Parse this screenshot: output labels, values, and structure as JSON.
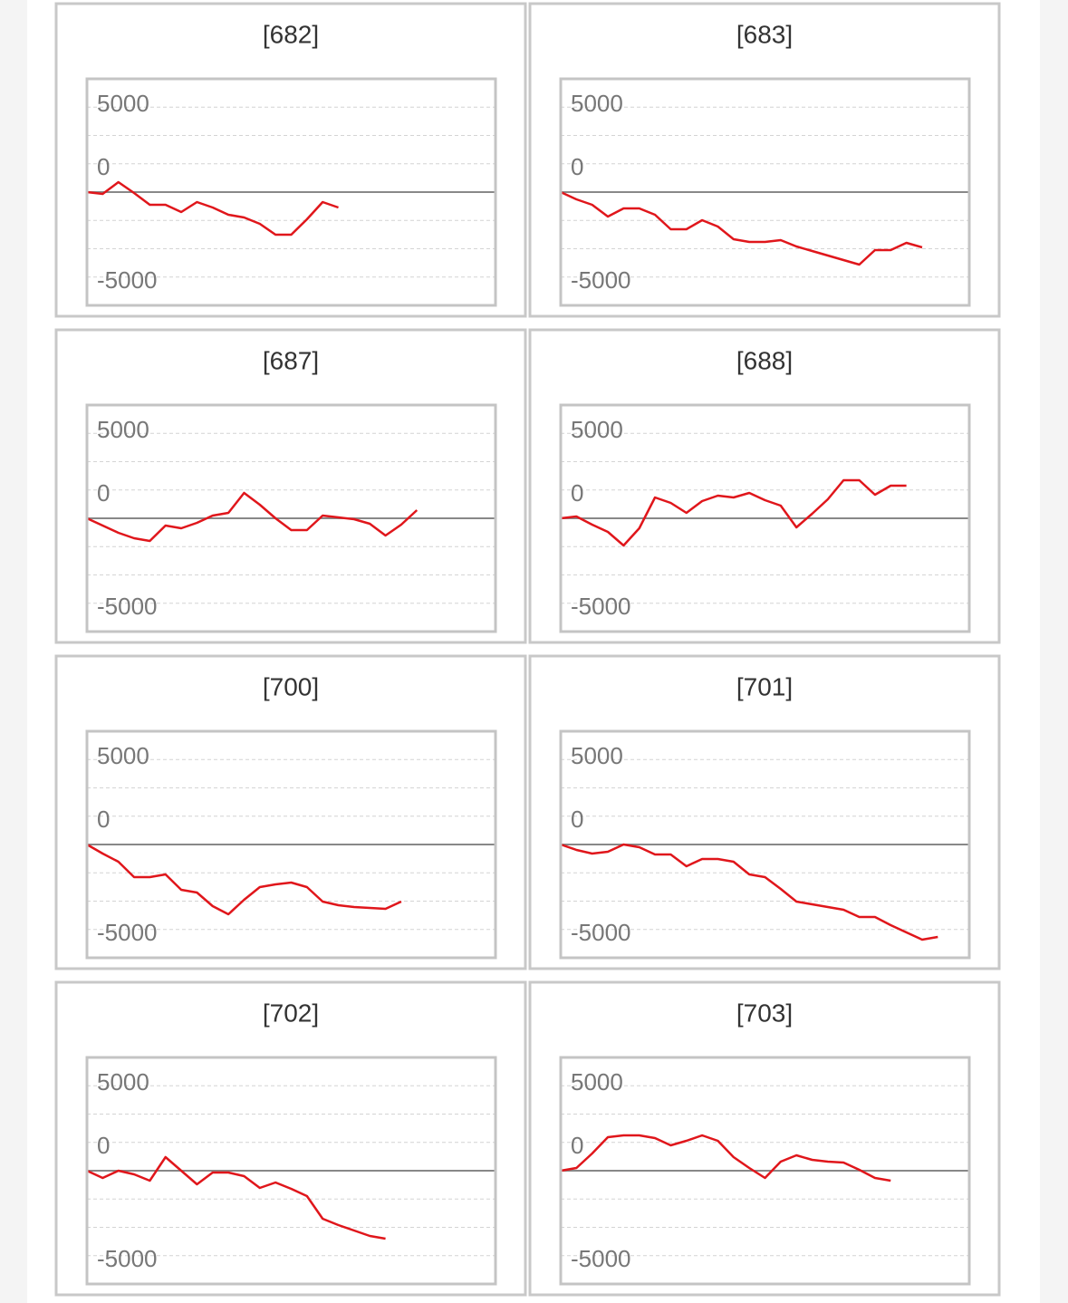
{
  "chart_data": [
    {
      "type": "line",
      "title": "[682]",
      "color": "#e0161b",
      "xlim": [
        0,
        26
      ],
      "ylim": [
        -5000,
        5000
      ],
      "yticks": [
        -5000,
        0,
        5000
      ],
      "minor_yticks": [
        -3750,
        -2500,
        -1250,
        1250,
        2500,
        3750
      ],
      "values": [
        0,
        -80,
        440,
        -40,
        -560,
        -560,
        -880,
        -440,
        -680,
        -1000,
        -1120,
        -1400,
        -1880,
        -1880,
        -1200,
        -440,
        -680
      ]
    },
    {
      "type": "line",
      "title": "[683]",
      "color": "#e0161b",
      "xlim": [
        0,
        26
      ],
      "ylim": [
        -5000,
        5000
      ],
      "yticks": [
        -5000,
        0,
        5000
      ],
      "minor_yticks": [
        -3750,
        -2500,
        -1250,
        1250,
        2500,
        3750
      ],
      "values": [
        0,
        -320,
        -560,
        -1080,
        -720,
        -720,
        -1000,
        -1640,
        -1640,
        -1240,
        -1520,
        -2080,
        -2200,
        -2200,
        -2120,
        -2400,
        -2600,
        -2800,
        -3000,
        -3200,
        -2560,
        -2560,
        -2240,
        -2440
      ]
    },
    {
      "type": "line",
      "title": "[687]",
      "color": "#e0161b",
      "xlim": [
        0,
        26
      ],
      "ylim": [
        -5000,
        5000
      ],
      "yticks": [
        -5000,
        0,
        5000
      ],
      "minor_yticks": [
        -3750,
        -2500,
        -1250,
        1250,
        2500,
        3750
      ],
      "values": [
        0,
        -320,
        -640,
        -880,
        -1000,
        -320,
        -440,
        -200,
        120,
        240,
        1120,
        600,
        0,
        -520,
        -520,
        120,
        40,
        -40,
        -240,
        -760,
        -280,
        360
      ]
    },
    {
      "type": "line",
      "title": "[688]",
      "color": "#e0161b",
      "xlim": [
        0,
        26
      ],
      "ylim": [
        -5000,
        5000
      ],
      "yticks": [
        -5000,
        0,
        5000
      ],
      "minor_yticks": [
        -3750,
        -2500,
        -1250,
        1250,
        2500,
        3750
      ],
      "values": [
        0,
        80,
        -280,
        -600,
        -1200,
        -440,
        920,
        680,
        240,
        760,
        1000,
        920,
        1120,
        800,
        560,
        -400,
        200,
        840,
        1680,
        1680,
        1040,
        1440,
        1440
      ]
    },
    {
      "type": "line",
      "title": "[700]",
      "color": "#e0161b",
      "xlim": [
        0,
        26
      ],
      "ylim": [
        -5000,
        5000
      ],
      "yticks": [
        -5000,
        0,
        5000
      ],
      "minor_yticks": [
        -3750,
        -2500,
        -1250,
        1250,
        2500,
        3750
      ],
      "values": [
        0,
        -400,
        -760,
        -1440,
        -1440,
        -1320,
        -2000,
        -2120,
        -2720,
        -3080,
        -2440,
        -1880,
        -1760,
        -1680,
        -1880,
        -2520,
        -2680,
        -2760,
        -2800,
        -2840,
        -2520
      ]
    },
    {
      "type": "line",
      "title": "[701]",
      "color": "#e0161b",
      "xlim": [
        0,
        26
      ],
      "ylim": [
        -5000,
        5000
      ],
      "yticks": [
        -5000,
        0,
        5000
      ],
      "minor_yticks": [
        -3750,
        -2500,
        -1250,
        1250,
        2500,
        3750
      ],
      "values": [
        0,
        -240,
        -400,
        -320,
        0,
        -120,
        -440,
        -440,
        -960,
        -640,
        -640,
        -760,
        -1320,
        -1440,
        -1960,
        -2520,
        -2640,
        -2760,
        -2880,
        -3200,
        -3200,
        -3560,
        -3880,
        -4200,
        -4080
      ]
    },
    {
      "type": "line",
      "title": "[702]",
      "color": "#e0161b",
      "xlim": [
        0,
        26
      ],
      "ylim": [
        -5000,
        5000
      ],
      "yticks": [
        -5000,
        0,
        5000
      ],
      "minor_yticks": [
        -3750,
        -2500,
        -1250,
        1250,
        2500,
        3750
      ],
      "values": [
        0,
        -320,
        0,
        -160,
        -440,
        600,
        0,
        -600,
        -80,
        -80,
        -240,
        -760,
        -520,
        -800,
        -1120,
        -2120,
        -2400,
        -2640,
        -2880,
        -3000
      ]
    },
    {
      "type": "line",
      "title": "[703]",
      "color": "#e0161b",
      "xlim": [
        0,
        26
      ],
      "ylim": [
        -5000,
        5000
      ],
      "yticks": [
        -5000,
        0,
        5000
      ],
      "minor_yticks": [
        -3750,
        -2500,
        -1250,
        1250,
        2500,
        3750
      ],
      "values": [
        0,
        120,
        760,
        1480,
        1560,
        1560,
        1440,
        1120,
        1320,
        1560,
        1320,
        600,
        120,
        -320,
        400,
        680,
        480,
        400,
        360,
        40,
        -320,
        -440
      ]
    }
  ]
}
